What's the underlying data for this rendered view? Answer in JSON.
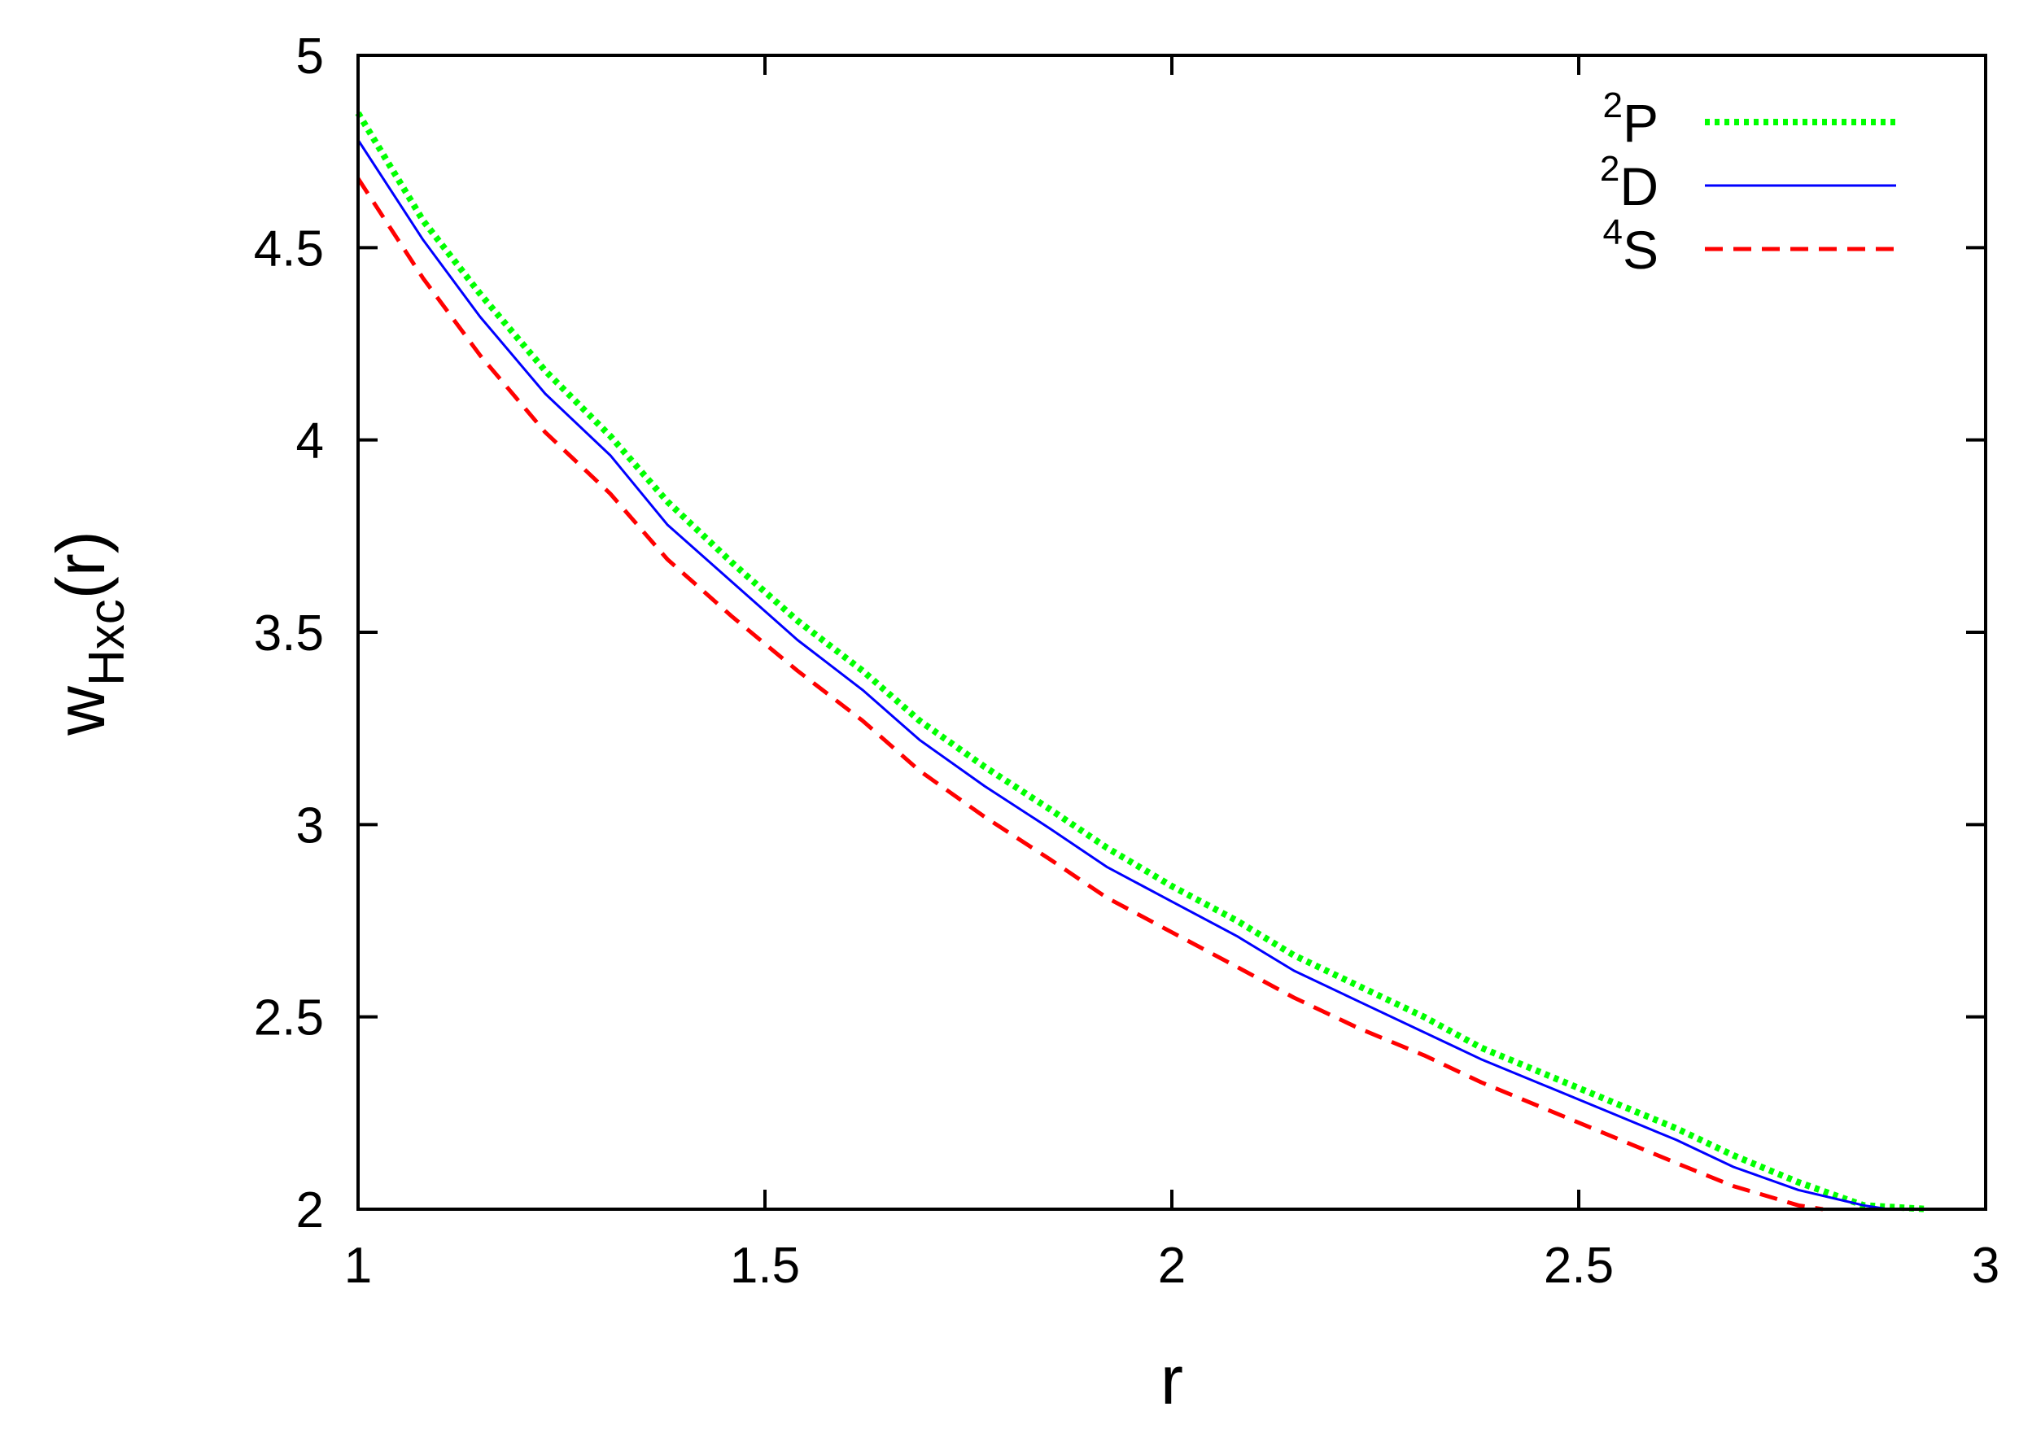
{
  "chart_data": {
    "type": "line",
    "xlim": [
      1,
      3
    ],
    "ylim": [
      2,
      5
    ],
    "xticks": [
      "1",
      "1.5",
      "2",
      "2.5",
      "3"
    ],
    "yticks": [
      "2",
      "2.5",
      "3",
      "3.5",
      "4",
      "4.5",
      "5"
    ],
    "xlabel": "r",
    "ylabel": {
      "base": "w",
      "sub": "Hxc",
      "tail": "(r)"
    },
    "grid": false,
    "legend_position": "top-right",
    "series": [
      {
        "key": "2P",
        "name": "²P",
        "label_sup": "2",
        "label_main": "P",
        "color": "#00ff00",
        "style": "dotted",
        "x": [
          1.0,
          1.08,
          1.15,
          1.23,
          1.31,
          1.38,
          1.46,
          1.54,
          1.62,
          1.69,
          1.77,
          1.85,
          1.92,
          2.0,
          2.08,
          2.15,
          2.23,
          2.31,
          2.38,
          2.46,
          2.54,
          2.62,
          2.69,
          2.77,
          2.85,
          2.93
        ],
        "y": [
          4.85,
          4.57,
          4.38,
          4.18,
          4.01,
          3.84,
          3.68,
          3.53,
          3.4,
          3.27,
          3.15,
          3.04,
          2.94,
          2.84,
          2.75,
          2.66,
          2.58,
          2.5,
          2.42,
          2.35,
          2.28,
          2.21,
          2.14,
          2.07,
          2.01,
          2.0
        ]
      },
      {
        "key": "2D",
        "name": "²D",
        "label_sup": "2",
        "label_main": "D",
        "color": "#0000ff",
        "style": "solid",
        "x": [
          1.0,
          1.08,
          1.15,
          1.23,
          1.31,
          1.38,
          1.46,
          1.54,
          1.62,
          1.69,
          1.77,
          1.85,
          1.92,
          2.0,
          2.08,
          2.15,
          2.23,
          2.31,
          2.38,
          2.46,
          2.54,
          2.62,
          2.69,
          2.77,
          2.85,
          2.88
        ],
        "y": [
          4.78,
          4.52,
          4.32,
          4.12,
          3.96,
          3.78,
          3.63,
          3.48,
          3.35,
          3.22,
          3.1,
          2.99,
          2.89,
          2.8,
          2.71,
          2.62,
          2.54,
          2.46,
          2.39,
          2.32,
          2.25,
          2.18,
          2.11,
          2.05,
          2.01,
          2.0
        ]
      },
      {
        "key": "4S",
        "name": "⁴S",
        "label_sup": "4",
        "label_main": "S",
        "color": "#ff0000",
        "style": "dashed",
        "x": [
          1.0,
          1.08,
          1.15,
          1.23,
          1.31,
          1.38,
          1.46,
          1.54,
          1.62,
          1.69,
          1.77,
          1.85,
          1.92,
          2.0,
          2.08,
          2.15,
          2.23,
          2.31,
          2.38,
          2.46,
          2.54,
          2.62,
          2.69,
          2.77,
          2.8
        ],
        "y": [
          4.68,
          4.42,
          4.22,
          4.02,
          3.86,
          3.69,
          3.54,
          3.4,
          3.27,
          3.14,
          3.02,
          2.91,
          2.81,
          2.72,
          2.63,
          2.55,
          2.47,
          2.4,
          2.33,
          2.26,
          2.19,
          2.12,
          2.06,
          2.01,
          2.0
        ]
      }
    ]
  }
}
